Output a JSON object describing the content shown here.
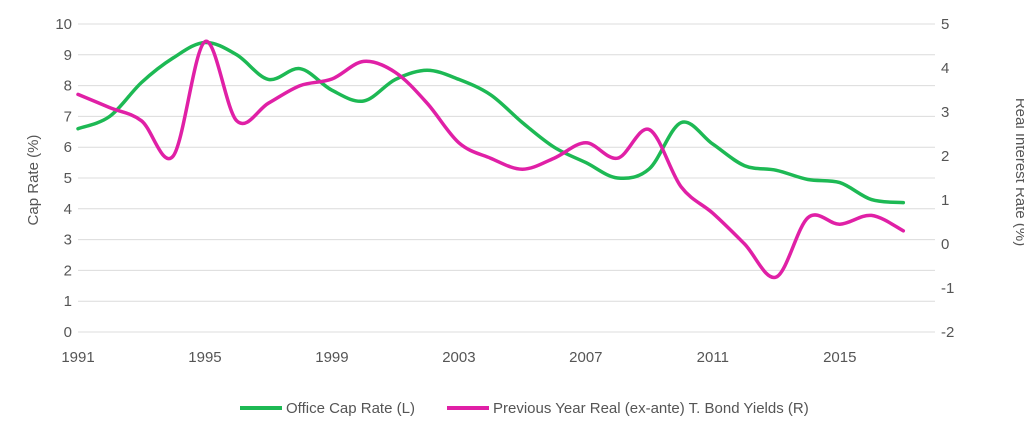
{
  "chart_data": {
    "type": "line",
    "title": "",
    "x_ticks": [
      "1991",
      "1995",
      "1999",
      "2003",
      "2007",
      "2011",
      "2015"
    ],
    "y_left": {
      "label": "Cap Rate (%)",
      "range": [
        0,
        10
      ],
      "ticks": [
        "0",
        "1",
        "2",
        "3",
        "4",
        "5",
        "6",
        "7",
        "8",
        "9",
        "10"
      ]
    },
    "y_right": {
      "label": "Real Interest Rate (%)",
      "range": [
        -2,
        5
      ],
      "ticks": [
        "-2",
        "-1",
        "0",
        "1",
        "2",
        "3",
        "4",
        "5"
      ]
    },
    "grid": true,
    "legend_position": "bottom-center",
    "series": [
      {
        "name": "Office Cap Rate (L)",
        "axis": "left",
        "color": "#1db954",
        "points": [
          [
            1991,
            6.6
          ],
          [
            1992,
            7.0
          ],
          [
            1993,
            8.1
          ],
          [
            1994,
            8.9
          ],
          [
            1995,
            9.4
          ],
          [
            1996,
            9.0
          ],
          [
            1997,
            8.2
          ],
          [
            1998,
            8.55
          ],
          [
            1999,
            7.85
          ],
          [
            2000,
            7.5
          ],
          [
            2001,
            8.2
          ],
          [
            2002,
            8.5
          ],
          [
            2003,
            8.2
          ],
          [
            2004,
            7.7
          ],
          [
            2005,
            6.8
          ],
          [
            2006,
            6.0
          ],
          [
            2007,
            5.5
          ],
          [
            2008,
            5.0
          ],
          [
            2009,
            5.3
          ],
          [
            2010,
            6.8
          ],
          [
            2011,
            6.1
          ],
          [
            2012,
            5.4
          ],
          [
            2013,
            5.25
          ],
          [
            2014,
            4.95
          ],
          [
            2015,
            4.85
          ],
          [
            2016,
            4.3
          ],
          [
            2017,
            4.2
          ]
        ]
      },
      {
        "name": "Previous Year Real (ex-ante) T. Bond Yields (R)",
        "axis": "right",
        "color": "#e020a6",
        "points": [
          [
            1991,
            3.4
          ],
          [
            1992,
            3.1
          ],
          [
            1993,
            2.8
          ],
          [
            1994,
            2.0
          ],
          [
            1995,
            4.6
          ],
          [
            1996,
            2.8
          ],
          [
            1997,
            3.2
          ],
          [
            1998,
            3.6
          ],
          [
            1999,
            3.75
          ],
          [
            2000,
            4.15
          ],
          [
            2001,
            3.9
          ],
          [
            2002,
            3.2
          ],
          [
            2003,
            2.3
          ],
          [
            2004,
            1.95
          ],
          [
            2005,
            1.7
          ],
          [
            2006,
            1.95
          ],
          [
            2007,
            2.3
          ],
          [
            2008,
            1.95
          ],
          [
            2009,
            2.6
          ],
          [
            2010,
            1.3
          ],
          [
            2011,
            0.7
          ],
          [
            2012,
            0.0
          ],
          [
            2013,
            -0.75
          ],
          [
            2014,
            0.6
          ],
          [
            2015,
            0.45
          ],
          [
            2016,
            0.65
          ],
          [
            2017,
            0.3
          ]
        ]
      }
    ]
  },
  "legend": {
    "items": [
      {
        "label": "Office Cap Rate (L)",
        "color": "#1db954"
      },
      {
        "label": "Previous Year Real (ex-ante) T. Bond Yields (R)",
        "color": "#e020a6"
      }
    ]
  }
}
